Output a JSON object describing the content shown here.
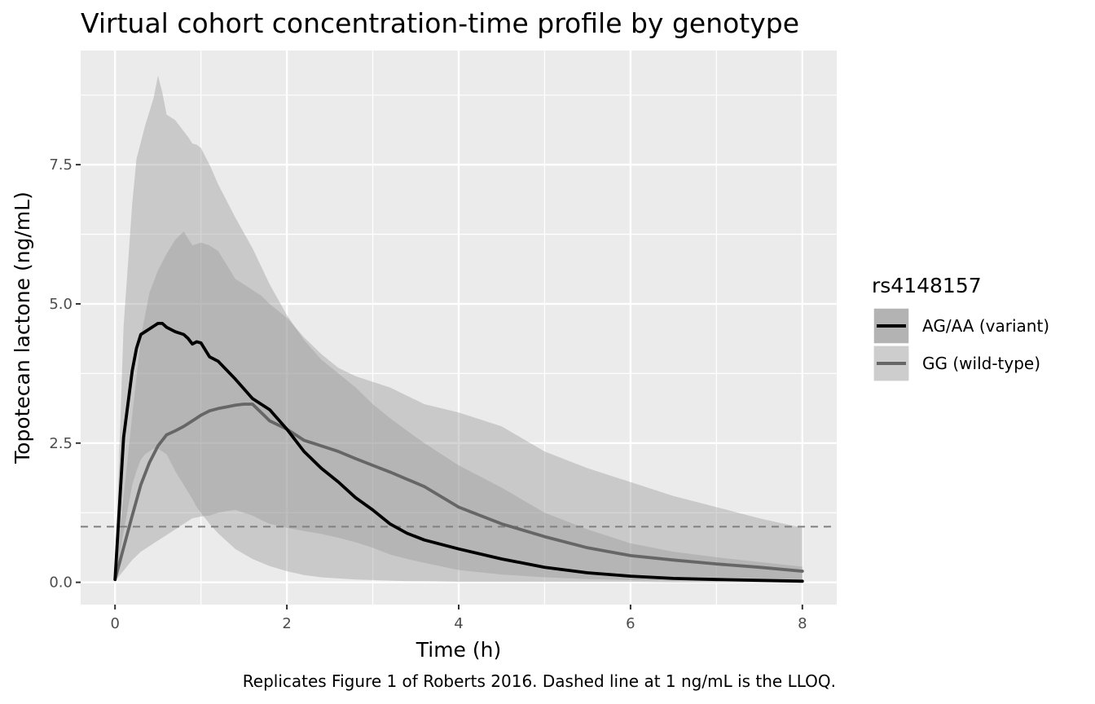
{
  "chart_data": {
    "type": "line",
    "title": "Virtual cohort concentration-time profile by genotype",
    "xlabel": "Time (h)",
    "ylabel": "Topotecan lactone (ng/mL)",
    "caption": "Replicates Figure 1 of Roberts 2016. Dashed line at 1 ng/mL is the LLOQ.",
    "xlim": [
      -0.4,
      8.4
    ],
    "ylim": [
      -0.4,
      9.55
    ],
    "x_ticks": [
      0,
      2,
      4,
      6,
      8
    ],
    "x_tick_labels": [
      "0",
      "2",
      "4",
      "6",
      "8"
    ],
    "y_ticks": [
      0,
      2.5,
      5,
      7.5
    ],
    "y_tick_labels": [
      "0.0",
      "2.5",
      "5.0",
      "7.5"
    ],
    "grid": true,
    "reference_line": {
      "y": 1,
      "style": "dashed"
    },
    "legend": {
      "title": "rs4148157",
      "position": "right",
      "entries": [
        "AG/AA (variant)",
        "GG (wild-type)"
      ]
    },
    "series": [
      {
        "name": "AG/AA (variant)",
        "color": "#000000",
        "ribbon_color": "#a6a6a6",
        "x": [
          0,
          0.1,
          0.2,
          0.25,
          0.3,
          0.35,
          0.45,
          0.5,
          0.55,
          0.6,
          0.7,
          0.8,
          0.85,
          0.9,
          0.95,
          1.0,
          1.1,
          1.2,
          1.4,
          1.6,
          1.8,
          2.0,
          2.2,
          2.4,
          2.6,
          2.8,
          3.0,
          3.2,
          3.4,
          3.6,
          4.0,
          4.5,
          5.0,
          5.5,
          6.0,
          6.5,
          7.0,
          8.0
        ],
        "values": [
          0.05,
          2.6,
          3.8,
          4.2,
          4.45,
          4.5,
          4.6,
          4.65,
          4.65,
          4.58,
          4.5,
          4.45,
          4.38,
          4.28,
          4.32,
          4.3,
          4.05,
          3.97,
          3.65,
          3.3,
          3.1,
          2.75,
          2.35,
          2.05,
          1.8,
          1.52,
          1.3,
          1.05,
          0.88,
          0.76,
          0.6,
          0.42,
          0.27,
          0.17,
          0.11,
          0.07,
          0.05,
          0.02
        ],
        "lower": [
          0.03,
          0.9,
          1.75,
          2.0,
          2.2,
          2.3,
          2.4,
          2.4,
          2.35,
          2.3,
          2.0,
          1.75,
          1.62,
          1.5,
          1.35,
          1.25,
          1.05,
          0.88,
          0.6,
          0.42,
          0.29,
          0.2,
          0.13,
          0.09,
          0.07,
          0.05,
          0.04,
          0.03,
          0.02,
          0.02,
          0.01,
          0.01,
          0.01,
          0.01,
          0.01,
          0.0,
          0.0,
          0.0
        ],
        "upper": [
          0.1,
          4.6,
          6.8,
          7.6,
          7.9,
          8.2,
          8.7,
          9.1,
          8.8,
          8.4,
          8.3,
          8.1,
          8.0,
          7.88,
          7.86,
          7.8,
          7.5,
          7.15,
          6.55,
          6.0,
          5.35,
          4.8,
          4.35,
          4.0,
          3.75,
          3.5,
          3.2,
          2.95,
          2.72,
          2.5,
          2.1,
          1.7,
          1.25,
          0.95,
          0.7,
          0.55,
          0.45,
          0.28
        ]
      },
      {
        "name": "GG (wild-type)",
        "color": "#666666",
        "ribbon_color": "#bdbdbd",
        "x": [
          0,
          0.2,
          0.3,
          0.4,
          0.5,
          0.6,
          0.7,
          0.8,
          0.9,
          1.0,
          1.1,
          1.2,
          1.3,
          1.4,
          1.5,
          1.6,
          1.7,
          1.8,
          2.0,
          2.2,
          2.4,
          2.6,
          2.8,
          3.0,
          3.2,
          3.4,
          3.6,
          4.0,
          4.5,
          5.0,
          5.5,
          6.0,
          6.5,
          7.0,
          7.5,
          8.0
        ],
        "values": [
          0.05,
          1.2,
          1.75,
          2.15,
          2.45,
          2.65,
          2.72,
          2.8,
          2.9,
          3.0,
          3.08,
          3.12,
          3.15,
          3.18,
          3.2,
          3.2,
          3.05,
          2.9,
          2.75,
          2.55,
          2.45,
          2.35,
          2.22,
          2.1,
          1.98,
          1.85,
          1.72,
          1.35,
          1.05,
          0.82,
          0.62,
          0.48,
          0.4,
          0.33,
          0.27,
          0.2
        ],
        "lower": [
          0.02,
          0.4,
          0.55,
          0.65,
          0.75,
          0.85,
          0.95,
          1.05,
          1.15,
          1.18,
          1.2,
          1.25,
          1.28,
          1.3,
          1.25,
          1.2,
          1.12,
          1.05,
          0.98,
          0.92,
          0.87,
          0.8,
          0.72,
          0.62,
          0.5,
          0.42,
          0.35,
          0.22,
          0.14,
          0.09,
          0.06,
          0.04,
          0.03,
          0.02,
          0.02,
          0.01
        ],
        "upper": [
          0.1,
          3.0,
          4.4,
          5.2,
          5.6,
          5.9,
          6.15,
          6.3,
          6.05,
          6.1,
          6.05,
          5.95,
          5.7,
          5.45,
          5.35,
          5.25,
          5.15,
          5.0,
          4.75,
          4.4,
          4.1,
          3.85,
          3.7,
          3.6,
          3.5,
          3.35,
          3.2,
          3.05,
          2.8,
          2.35,
          2.05,
          1.8,
          1.55,
          1.35,
          1.15,
          0.98
        ]
      }
    ]
  }
}
